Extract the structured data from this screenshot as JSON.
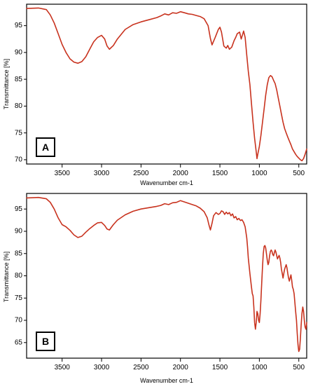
{
  "colors": {
    "line": "#c8321e",
    "axes": "#000000",
    "background": "#ffffff"
  },
  "chart_data": [
    {
      "type": "line",
      "panel_label": "A",
      "xlabel": "Wavenumber cm-1",
      "ylabel": "Transmittance [%]",
      "xlim": [
        3950,
        400
      ],
      "ylim": [
        69.2,
        99
      ],
      "x_ticks": [
        3500,
        3000,
        2500,
        2000,
        1500,
        1000,
        500
      ],
      "x_tick_labels": [
        "3500",
        "3000",
        "2500",
        "2000",
        "1500",
        "1000",
        "500"
      ],
      "y_ticks": [
        70,
        75,
        80,
        85,
        90,
        95
      ],
      "y_tick_labels": [
        "70",
        "75",
        "80",
        "85",
        "90",
        "95"
      ],
      "grid": false,
      "legend": "none",
      "series": [
        {
          "x": [
            3950,
            3800,
            3700,
            3650,
            3600,
            3550,
            3500,
            3450,
            3400,
            3350,
            3300,
            3250,
            3200,
            3150,
            3100,
            3050,
            3000,
            2960,
            2930,
            2900,
            2880,
            2850,
            2800,
            2700,
            2600,
            2500,
            2400,
            2300,
            2250,
            2200,
            2150,
            2100,
            2050,
            2000,
            1950,
            1900,
            1850,
            1800,
            1750,
            1700,
            1650,
            1620,
            1600,
            1560,
            1520,
            1500,
            1480,
            1450,
            1420,
            1400,
            1380,
            1350,
            1320,
            1300,
            1280,
            1250,
            1230,
            1200,
            1180,
            1160,
            1150,
            1140,
            1120,
            1100,
            1080,
            1060,
            1040,
            1030,
            1020,
            1000,
            980,
            960,
            940,
            920,
            900,
            880,
            860,
            840,
            820,
            800,
            780,
            760,
            740,
            720,
            700,
            680,
            660,
            640,
            620,
            600,
            580,
            560,
            540,
            520,
            500,
            480,
            460,
            440,
            420,
            400
          ],
          "y": [
            98.2,
            98.3,
            98.0,
            97.0,
            95.5,
            93.5,
            91.5,
            90.0,
            88.8,
            88.2,
            88.0,
            88.3,
            89.2,
            90.6,
            92.0,
            92.8,
            93.2,
            92.5,
            91.2,
            90.6,
            90.9,
            91.3,
            92.5,
            94.3,
            95.2,
            95.7,
            96.1,
            96.5,
            96.8,
            97.2,
            97.0,
            97.4,
            97.3,
            97.6,
            97.4,
            97.2,
            97.1,
            96.9,
            96.7,
            96.3,
            95.0,
            92.6,
            91.4,
            92.8,
            94.3,
            94.7,
            93.8,
            91.2,
            90.8,
            91.3,
            90.6,
            91.0,
            92.2,
            92.8,
            93.5,
            93.8,
            92.5,
            94.0,
            92.8,
            89.5,
            88.0,
            86.5,
            84.0,
            80.5,
            77.0,
            74.0,
            71.5,
            70.2,
            71.0,
            72.5,
            74.5,
            77.0,
            79.5,
            82.0,
            84.0,
            85.3,
            85.7,
            85.5,
            84.8,
            84.2,
            83.0,
            81.5,
            80.0,
            78.5,
            77.0,
            75.8,
            75.0,
            74.2,
            73.5,
            72.8,
            72.0,
            71.5,
            71.0,
            70.6,
            70.3,
            70.0,
            69.8,
            70.2,
            71.0,
            72.0
          ]
        }
      ]
    },
    {
      "type": "line",
      "panel_label": "B",
      "xlabel": "Wavenumber cm-1",
      "ylabel": "Transmittance [%]",
      "xlim": [
        3950,
        400
      ],
      "ylim": [
        61.5,
        98.5
      ],
      "x_ticks": [
        3500,
        3000,
        2500,
        2000,
        1500,
        1000,
        500
      ],
      "x_tick_labels": [
        "3500",
        "3000",
        "2500",
        "2000",
        "1500",
        "1000",
        "500"
      ],
      "y_ticks": [
        65,
        70,
        75,
        80,
        85,
        90,
        95
      ],
      "y_tick_labels": [
        "65",
        "70",
        "75",
        "80",
        "85",
        "90",
        "95"
      ],
      "grid": false,
      "legend": "none",
      "series": [
        {
          "x": [
            3950,
            3800,
            3700,
            3650,
            3600,
            3550,
            3500,
            3450,
            3400,
            3350,
            3300,
            3250,
            3200,
            3150,
            3100,
            3050,
            3000,
            2960,
            2930,
            2900,
            2880,
            2850,
            2800,
            2700,
            2600,
            2500,
            2400,
            2300,
            2250,
            2200,
            2150,
            2100,
            2050,
            2000,
            1950,
            1900,
            1850,
            1800,
            1750,
            1700,
            1660,
            1640,
            1620,
            1600,
            1580,
            1550,
            1520,
            1500,
            1480,
            1460,
            1440,
            1420,
            1400,
            1380,
            1360,
            1340,
            1320,
            1300,
            1280,
            1260,
            1240,
            1220,
            1200,
            1180,
            1160,
            1150,
            1140,
            1120,
            1100,
            1090,
            1080,
            1070,
            1060,
            1050,
            1040,
            1030,
            1020,
            1010,
            1000,
            990,
            980,
            970,
            960,
            950,
            940,
            930,
            920,
            910,
            900,
            890,
            880,
            870,
            860,
            850,
            840,
            830,
            820,
            810,
            800,
            790,
            780,
            770,
            760,
            750,
            740,
            730,
            720,
            710,
            700,
            690,
            680,
            670,
            660,
            650,
            640,
            630,
            620,
            610,
            600,
            590,
            580,
            570,
            560,
            550,
            540,
            530,
            520,
            510,
            500,
            490,
            480,
            470,
            460,
            450,
            440,
            430,
            420,
            410,
            400
          ],
          "y": [
            97.5,
            97.6,
            97.3,
            96.5,
            95.0,
            93.0,
            91.5,
            91.0,
            90.2,
            89.2,
            88.6,
            88.9,
            89.8,
            90.6,
            91.3,
            91.9,
            92.0,
            91.3,
            90.5,
            90.3,
            90.8,
            91.5,
            92.5,
            93.7,
            94.5,
            95.0,
            95.3,
            95.6,
            95.8,
            96.2,
            96.0,
            96.4,
            96.5,
            96.9,
            96.6,
            96.3,
            96.0,
            95.7,
            95.2,
            94.4,
            93.0,
            91.5,
            90.3,
            91.8,
            93.5,
            94.2,
            93.8,
            94.0,
            94.6,
            94.4,
            93.8,
            94.3,
            93.9,
            94.2,
            93.5,
            93.9,
            93.0,
            93.3,
            92.6,
            92.9,
            92.4,
            92.6,
            92.0,
            91.0,
            88.5,
            86.5,
            84.0,
            80.5,
            77.5,
            76.0,
            75.5,
            73.0,
            69.5,
            68.0,
            69.5,
            72.0,
            71.5,
            70.0,
            69.5,
            71.5,
            74.5,
            78.5,
            82.0,
            85.0,
            86.6,
            86.8,
            86.3,
            85.0,
            83.5,
            82.5,
            83.0,
            84.5,
            85.5,
            85.8,
            85.5,
            84.8,
            84.5,
            85.2,
            85.8,
            85.3,
            84.5,
            83.8,
            84.2,
            84.6,
            84.0,
            83.0,
            81.5,
            80.5,
            79.5,
            80.5,
            81.5,
            82.0,
            82.5,
            81.8,
            80.5,
            79.5,
            78.8,
            79.5,
            80.2,
            79.0,
            77.5,
            77.0,
            76.0,
            74.0,
            72.0,
            70.0,
            67.0,
            64.5,
            63.0,
            63.5,
            66.0,
            69.0,
            71.5,
            73.0,
            72.0,
            70.0,
            68.5,
            68.0,
            69.5
          ]
        }
      ]
    }
  ]
}
